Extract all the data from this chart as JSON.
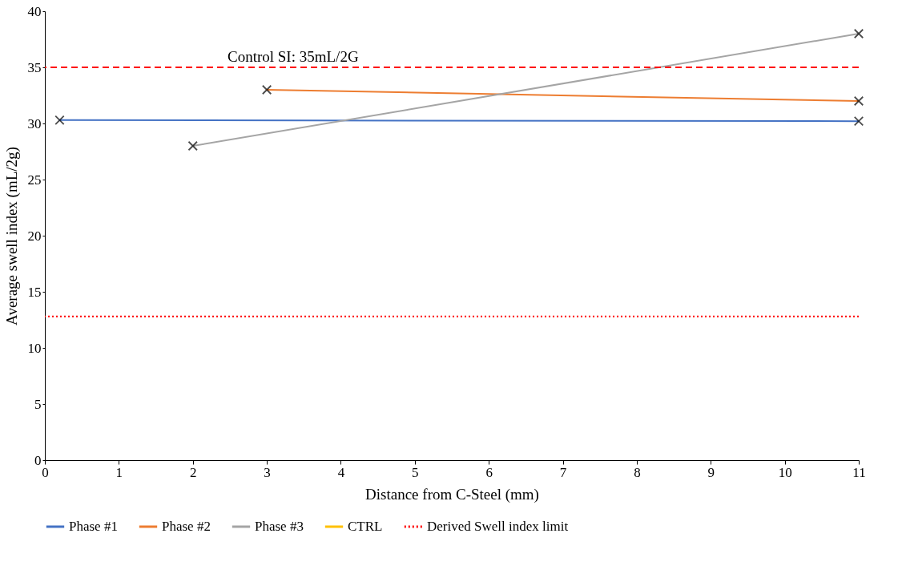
{
  "chart_data": {
    "type": "line",
    "xlabel": "Distance from C-Steel (mm)",
    "ylabel": "Average swell index (mL/2g)",
    "xlim": [
      0,
      11
    ],
    "xticks": [
      0,
      1,
      2,
      3,
      4,
      5,
      6,
      7,
      8,
      9,
      10,
      11
    ],
    "ylim": [
      0,
      40
    ],
    "yticks": [
      0,
      5,
      10,
      15,
      20,
      25,
      30,
      35,
      40
    ],
    "series": [
      {
        "name": "Phase #1",
        "color": "#4472c4",
        "x": [
          0.2,
          11
        ],
        "values": [
          30.3,
          30.2
        ]
      },
      {
        "name": "Phase #2",
        "color": "#ed7d31",
        "x": [
          3,
          11
        ],
        "values": [
          33,
          32
        ]
      },
      {
        "name": "Phase #3",
        "color": "#a5a5a5",
        "x": [
          2,
          11
        ],
        "values": [
          28,
          38
        ]
      },
      {
        "name": "CTRL",
        "color": "#ffc000"
      }
    ],
    "ref_lines": [
      {
        "axis": "y",
        "value": 35,
        "label": "Control SI: 35mL/2G",
        "color": "#ff0000",
        "line_style": "dashed"
      },
      {
        "axis": "y",
        "value": 12.8,
        "label": "Derived Swell index limit",
        "color": "#ff0000",
        "line_style": "dotted"
      }
    ],
    "marker": "cross",
    "line_style": "solid",
    "grid": false,
    "legend": "bottom"
  }
}
